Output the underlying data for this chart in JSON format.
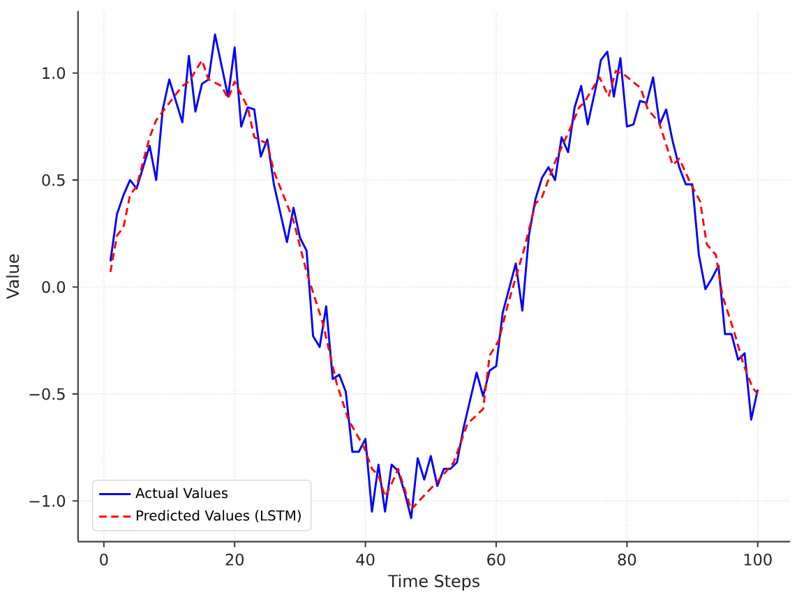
{
  "chart_data": {
    "type": "line",
    "xlabel": "Time Steps",
    "ylabel": "Value",
    "xlim": [
      -3.95,
      104.95
    ],
    "ylim": [
      -1.19,
      1.29
    ],
    "xticks": [
      0,
      20,
      40,
      60,
      80,
      100
    ],
    "yticks": [
      {
        "value": -1.0,
        "label": "−1.0"
      },
      {
        "value": -0.5,
        "label": "−0.5"
      },
      {
        "value": 0.0,
        "label": "0.0"
      },
      {
        "value": 0.5,
        "label": "0.5"
      },
      {
        "value": 1.0,
        "label": "1.0"
      }
    ],
    "grid": true,
    "legend": "bottom left",
    "series": [
      {
        "name": "Actual Values",
        "color": "#0000ff",
        "line_style": "solid",
        "x": [
          1,
          2,
          3,
          4,
          5,
          7,
          8,
          9,
          10,
          12,
          13,
          14,
          15,
          16,
          17,
          19,
          20,
          21,
          22,
          23,
          24,
          25,
          26,
          28,
          29,
          30,
          31,
          32,
          33,
          34,
          35,
          36,
          37,
          38,
          39,
          40,
          41,
          42,
          43,
          44,
          45,
          46,
          47,
          48,
          49,
          50,
          51,
          52,
          53,
          54,
          55,
          57,
          58,
          59,
          60,
          61,
          63,
          64,
          65,
          66,
          67,
          68,
          69,
          70,
          71,
          72,
          73,
          74,
          75.5,
          76,
          77,
          78,
          79,
          80,
          81,
          82,
          83,
          84,
          85,
          86,
          87,
          88,
          89,
          90,
          91,
          92,
          93,
          94,
          95,
          96,
          97,
          98,
          99,
          100
        ],
        "values": [
          0.12,
          0.34,
          0.43,
          0.5,
          0.46,
          0.66,
          0.5,
          0.83,
          0.97,
          0.77,
          1.08,
          0.82,
          0.95,
          0.97,
          1.18,
          0.89,
          1.12,
          0.75,
          0.84,
          0.83,
          0.61,
          0.69,
          0.48,
          0.21,
          0.37,
          0.23,
          0.17,
          -0.23,
          -0.28,
          -0.09,
          -0.43,
          -0.41,
          -0.49,
          -0.77,
          -0.77,
          -0.71,
          -1.05,
          -0.83,
          -1.05,
          -0.83,
          -0.86,
          -0.96,
          -1.08,
          -0.8,
          -0.9,
          -0.79,
          -0.93,
          -0.85,
          -0.85,
          -0.82,
          -0.66,
          -0.4,
          -0.51,
          -0.39,
          -0.37,
          -0.12,
          0.11,
          -0.11,
          0.24,
          0.41,
          0.51,
          0.56,
          0.5,
          0.7,
          0.63,
          0.84,
          0.94,
          0.76,
          0.97,
          1.06,
          1.1,
          0.89,
          1.07,
          0.75,
          0.76,
          0.87,
          0.86,
          0.98,
          0.76,
          0.83,
          0.68,
          0.56,
          0.48,
          0.48,
          0.15,
          -0.01,
          0.04,
          0.1,
          -0.22,
          -0.22,
          -0.34,
          -0.31,
          -0.62,
          -0.48
        ]
      },
      {
        "name": "Predicted Values (LSTM)",
        "color": "#ff0000",
        "line_style": "dashed",
        "x": [
          1,
          2,
          3,
          4,
          5,
          7,
          8,
          10,
          12,
          13,
          15,
          16,
          18,
          19,
          20,
          22,
          23,
          25,
          26,
          29,
          31,
          33.5,
          35.6,
          37.4,
          39.8,
          41,
          42,
          43,
          44,
          45,
          47,
          48.5,
          51,
          53.5,
          55.6,
          58,
          59,
          60.4,
          61.8,
          64.3,
          66,
          67,
          69.2,
          71.3,
          72.7,
          73.4,
          75.8,
          77.2,
          78.3,
          79.7,
          82.1,
          83.2,
          84.9,
          87,
          88,
          89.8,
          91.2,
          92.2,
          93.6,
          94.6,
          96.4,
          97.8,
          99.2,
          100
        ],
        "values": [
          0.07,
          0.24,
          0.28,
          0.43,
          0.47,
          0.7,
          0.78,
          0.86,
          0.94,
          0.96,
          1.06,
          0.97,
          0.94,
          0.88,
          0.96,
          0.84,
          0.7,
          0.67,
          0.54,
          0.31,
          0.07,
          -0.17,
          -0.45,
          -0.62,
          -0.75,
          -0.85,
          -0.88,
          -0.98,
          -0.92,
          -0.85,
          -1.04,
          -0.99,
          -0.91,
          -0.82,
          -0.64,
          -0.57,
          -0.32,
          -0.25,
          -0.08,
          0.18,
          0.39,
          0.42,
          0.6,
          0.74,
          0.84,
          0.86,
          0.98,
          0.89,
          1.01,
          0.99,
          0.93,
          0.83,
          0.77,
          0.57,
          0.6,
          0.48,
          0.4,
          0.2,
          0.15,
          -0.04,
          -0.21,
          -0.36,
          -0.47,
          -0.5
        ]
      }
    ]
  }
}
